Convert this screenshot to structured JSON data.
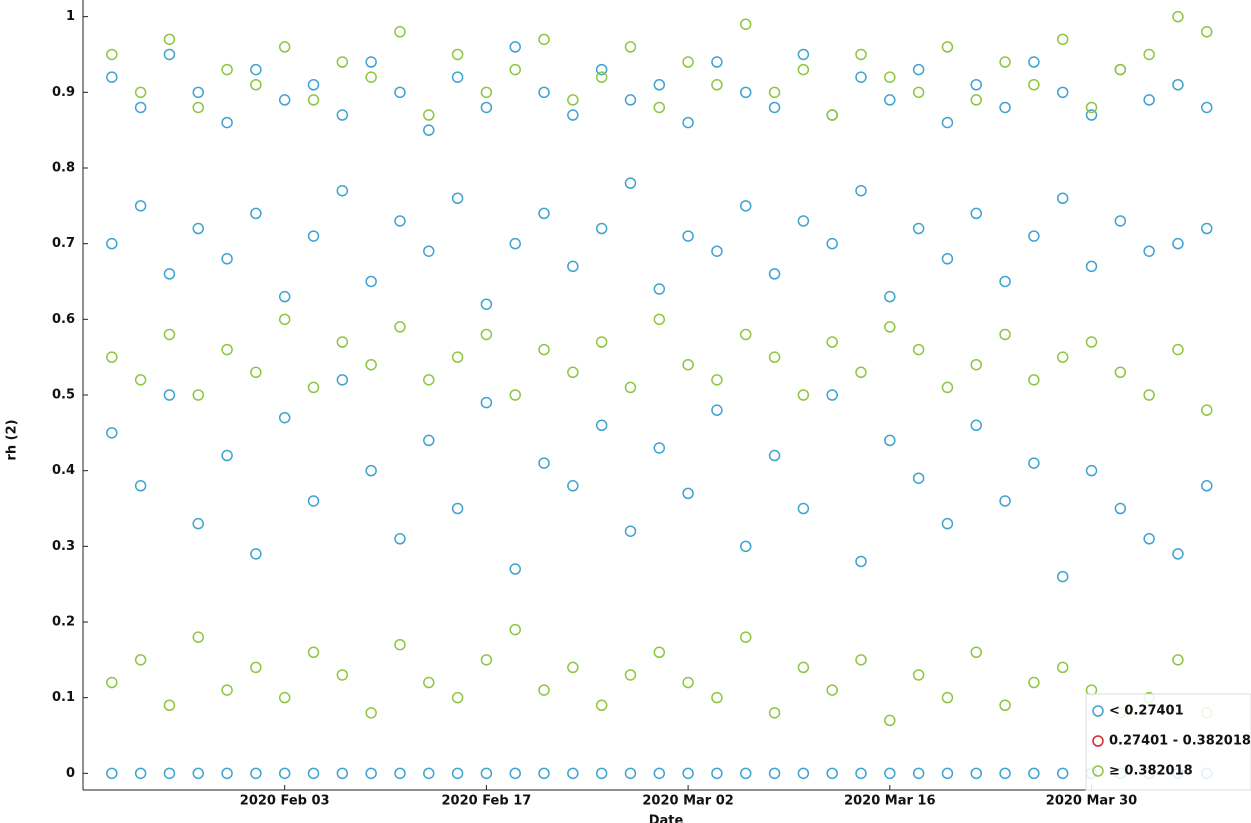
{
  "chart_data": {
    "type": "scatter",
    "x_label": "Date",
    "y_label": "rh (2)",
    "xlim": [
      "2020-01-20",
      "2020-04-10"
    ],
    "xticks": [
      {
        "value": "2020-02-03",
        "label": "2020 Feb 03"
      },
      {
        "value": "2020-02-17",
        "label": "2020 Feb 17"
      },
      {
        "value": "2020-03-02",
        "label": "2020 Mar 02"
      },
      {
        "value": "2020-03-16",
        "label": "2020 Mar 16"
      },
      {
        "value": "2020-03-30",
        "label": "2020 Mar 30"
      }
    ],
    "ylim": [
      -0.022,
      1.022
    ],
    "yticks": [
      0,
      0.1,
      0.2,
      0.3,
      0.4,
      0.5,
      0.6,
      0.7,
      0.8,
      0.9,
      1
    ],
    "legend": "lower right",
    "series": [
      {
        "name": "< 0.27401",
        "color": "#3ea3cf",
        "x": [
          "2020-01-22",
          "2020-01-24",
          "2020-01-26",
          "2020-01-28",
          "2020-01-30",
          "2020-02-01",
          "2020-02-03",
          "2020-02-05",
          "2020-02-07",
          "2020-02-09",
          "2020-02-11",
          "2020-02-13",
          "2020-02-15",
          "2020-02-17",
          "2020-02-19",
          "2020-02-21",
          "2020-02-23",
          "2020-02-25",
          "2020-02-27",
          "2020-02-29",
          "2020-03-02",
          "2020-03-04",
          "2020-03-06",
          "2020-03-08",
          "2020-03-10",
          "2020-03-12",
          "2020-03-14",
          "2020-03-16",
          "2020-03-18",
          "2020-03-20",
          "2020-03-22",
          "2020-03-24",
          "2020-03-26",
          "2020-03-28",
          "2020-03-30",
          "2020-04-01",
          "2020-04-03",
          "2020-04-05",
          "2020-04-07",
          "2020-01-22",
          "2020-01-24",
          "2020-01-26",
          "2020-01-28",
          "2020-01-30",
          "2020-02-01",
          "2020-02-03",
          "2020-02-05",
          "2020-02-07",
          "2020-02-09",
          "2020-02-11",
          "2020-02-13",
          "2020-02-15",
          "2020-02-17",
          "2020-02-19",
          "2020-02-21",
          "2020-02-23",
          "2020-02-25",
          "2020-02-27",
          "2020-02-29",
          "2020-03-02",
          "2020-03-04",
          "2020-03-06",
          "2020-03-08",
          "2020-03-10",
          "2020-03-12",
          "2020-03-14",
          "2020-03-16",
          "2020-03-18",
          "2020-03-20",
          "2020-03-22",
          "2020-03-24",
          "2020-03-26",
          "2020-03-28",
          "2020-03-30",
          "2020-04-01",
          "2020-04-03",
          "2020-04-05",
          "2020-04-07",
          "2020-01-22",
          "2020-01-24",
          "2020-01-26",
          "2020-01-28",
          "2020-01-30",
          "2020-02-01",
          "2020-02-03",
          "2020-02-05",
          "2020-02-07",
          "2020-02-09",
          "2020-02-11",
          "2020-02-13",
          "2020-02-15",
          "2020-02-17",
          "2020-02-19",
          "2020-02-21",
          "2020-02-23",
          "2020-02-25",
          "2020-02-27",
          "2020-02-29",
          "2020-03-02",
          "2020-03-04",
          "2020-03-06",
          "2020-03-08",
          "2020-03-10",
          "2020-03-12",
          "2020-03-14",
          "2020-03-16",
          "2020-03-18",
          "2020-03-20",
          "2020-03-22",
          "2020-03-24",
          "2020-03-26",
          "2020-03-28",
          "2020-03-30",
          "2020-04-01",
          "2020-04-03",
          "2020-04-05",
          "2020-04-07",
          "2020-01-22",
          "2020-01-24",
          "2020-01-26",
          "2020-01-28",
          "2020-01-30",
          "2020-02-01",
          "2020-02-03",
          "2020-02-05",
          "2020-02-07",
          "2020-02-09",
          "2020-02-11",
          "2020-02-13",
          "2020-02-15",
          "2020-02-17",
          "2020-02-19",
          "2020-02-21",
          "2020-02-23",
          "2020-02-25",
          "2020-02-27",
          "2020-02-29",
          "2020-03-02",
          "2020-03-04",
          "2020-03-06",
          "2020-03-08",
          "2020-03-10",
          "2020-03-12",
          "2020-03-14",
          "2020-03-16",
          "2020-03-18",
          "2020-03-20",
          "2020-03-22",
          "2020-03-24",
          "2020-03-26",
          "2020-03-28",
          "2020-03-30",
          "2020-04-01",
          "2020-04-03",
          "2020-04-05",
          "2020-04-07"
        ],
        "values": [
          0,
          0,
          0,
          0,
          0,
          0,
          0,
          0,
          0,
          0,
          0,
          0,
          0,
          0,
          0,
          0,
          0,
          0,
          0,
          0,
          0,
          0,
          0,
          0,
          0,
          0,
          0,
          0,
          0,
          0,
          0,
          0,
          0,
          0,
          0,
          0,
          0,
          0,
          0,
          0.92,
          0.88,
          0.95,
          0.9,
          0.86,
          0.93,
          0.89,
          0.91,
          0.87,
          0.94,
          0.9,
          0.85,
          0.92,
          0.88,
          0.96,
          0.9,
          0.87,
          0.93,
          0.89,
          0.91,
          0.86,
          0.94,
          0.9,
          0.88,
          0.95,
          0.87,
          0.92,
          0.89,
          0.93,
          0.86,
          0.91,
          0.88,
          0.94,
          0.9,
          0.87,
          0.93,
          0.89,
          0.91,
          0.88,
          0.7,
          0.75,
          0.66,
          0.72,
          0.68,
          0.74,
          0.63,
          0.71,
          0.77,
          0.65,
          0.73,
          0.69,
          0.76,
          0.62,
          0.7,
          0.74,
          0.67,
          0.72,
          0.78,
          0.64,
          0.71,
          0.69,
          0.75,
          0.66,
          0.73,
          0.7,
          0.77,
          0.63,
          0.72,
          0.68,
          0.74,
          0.65,
          0.71,
          0.76,
          0.67,
          0.73,
          0.69,
          0.7,
          0.72,
          0.45,
          0.38,
          0.5,
          0.33,
          0.42,
          0.29,
          0.47,
          0.36,
          0.52,
          0.4,
          0.31,
          0.44,
          0.35,
          0.49,
          0.27,
          0.41,
          0.38,
          0.46,
          0.32,
          0.43,
          0.37,
          0.48,
          0.3,
          0.42,
          0.35,
          0.5,
          0.28,
          0.44,
          0.39,
          0.33,
          0.46,
          0.36,
          0.41,
          0.26,
          0.4,
          0.35,
          0.31,
          0.29,
          0.38
        ]
      },
      {
        "name": "0.27401 - 0.382018",
        "color": "#d9262a",
        "x": [],
        "values": []
      },
      {
        "name": "≥ 0.382018",
        "color": "#8dc63f",
        "x": [
          "2020-01-22",
          "2020-01-24",
          "2020-01-26",
          "2020-01-28",
          "2020-01-30",
          "2020-02-01",
          "2020-02-03",
          "2020-02-05",
          "2020-02-07",
          "2020-02-09",
          "2020-02-11",
          "2020-02-13",
          "2020-02-15",
          "2020-02-17",
          "2020-02-19",
          "2020-02-21",
          "2020-02-23",
          "2020-02-25",
          "2020-02-27",
          "2020-02-29",
          "2020-03-02",
          "2020-03-04",
          "2020-03-06",
          "2020-03-08",
          "2020-03-10",
          "2020-03-12",
          "2020-03-14",
          "2020-03-16",
          "2020-03-18",
          "2020-03-20",
          "2020-03-22",
          "2020-03-24",
          "2020-03-26",
          "2020-03-28",
          "2020-03-30",
          "2020-04-01",
          "2020-04-03",
          "2020-04-05",
          "2020-04-07",
          "2020-01-22",
          "2020-01-24",
          "2020-01-26",
          "2020-01-28",
          "2020-01-30",
          "2020-02-01",
          "2020-02-03",
          "2020-02-05",
          "2020-02-07",
          "2020-02-09",
          "2020-02-11",
          "2020-02-13",
          "2020-02-15",
          "2020-02-17",
          "2020-02-19",
          "2020-02-21",
          "2020-02-23",
          "2020-02-25",
          "2020-02-27",
          "2020-02-29",
          "2020-03-02",
          "2020-03-04",
          "2020-03-06",
          "2020-03-08",
          "2020-03-10",
          "2020-03-12",
          "2020-03-14",
          "2020-03-16",
          "2020-03-18",
          "2020-03-20",
          "2020-03-22",
          "2020-03-24",
          "2020-03-26",
          "2020-03-28",
          "2020-03-30",
          "2020-04-01",
          "2020-04-03",
          "2020-04-05",
          "2020-04-07",
          "2020-01-22",
          "2020-01-24",
          "2020-01-26",
          "2020-01-28",
          "2020-01-30",
          "2020-02-01",
          "2020-02-03",
          "2020-02-05",
          "2020-02-07",
          "2020-02-09",
          "2020-02-11",
          "2020-02-13",
          "2020-02-15",
          "2020-02-17",
          "2020-02-19",
          "2020-02-21",
          "2020-02-23",
          "2020-02-25",
          "2020-02-27",
          "2020-02-29",
          "2020-03-02",
          "2020-03-04",
          "2020-03-06",
          "2020-03-08",
          "2020-03-10",
          "2020-03-12",
          "2020-03-14",
          "2020-03-16",
          "2020-03-18",
          "2020-03-20",
          "2020-03-22",
          "2020-03-24",
          "2020-03-26",
          "2020-03-28",
          "2020-03-30",
          "2020-04-01",
          "2020-04-03",
          "2020-04-05",
          "2020-04-07"
        ],
        "values": [
          0.12,
          0.15,
          0.09,
          0.18,
          0.11,
          0.14,
          0.1,
          0.16,
          0.13,
          0.08,
          0.17,
          0.12,
          0.1,
          0.15,
          0.19,
          0.11,
          0.14,
          0.09,
          0.13,
          0.16,
          0.12,
          0.1,
          0.18,
          0.08,
          0.14,
          0.11,
          0.15,
          0.07,
          0.13,
          0.1,
          0.16,
          0.09,
          0.12,
          0.14,
          0.11,
          0.08,
          0.1,
          0.15,
          0.08,
          0.55,
          0.52,
          0.58,
          0.5,
          0.56,
          0.53,
          0.6,
          0.51,
          0.57,
          0.54,
          0.59,
          0.52,
          0.55,
          0.58,
          0.5,
          0.56,
          0.53,
          0.57,
          0.51,
          0.6,
          0.54,
          0.52,
          0.58,
          0.55,
          0.5,
          0.57,
          0.53,
          0.59,
          0.56,
          0.51,
          0.54,
          0.58,
          0.52,
          0.55,
          0.57,
          0.53,
          0.5,
          0.56,
          0.48,
          0.95,
          0.9,
          0.97,
          0.88,
          0.93,
          0.91,
          0.96,
          0.89,
          0.94,
          0.92,
          0.98,
          0.87,
          0.95,
          0.9,
          0.93,
          0.97,
          0.89,
          0.92,
          0.96,
          0.88,
          0.94,
          0.91,
          0.99,
          0.9,
          0.93,
          0.87,
          0.95,
          0.92,
          0.9,
          0.96,
          0.89,
          0.94,
          0.91,
          0.97,
          0.88,
          0.93,
          0.95,
          1,
          0.98
        ]
      }
    ]
  }
}
